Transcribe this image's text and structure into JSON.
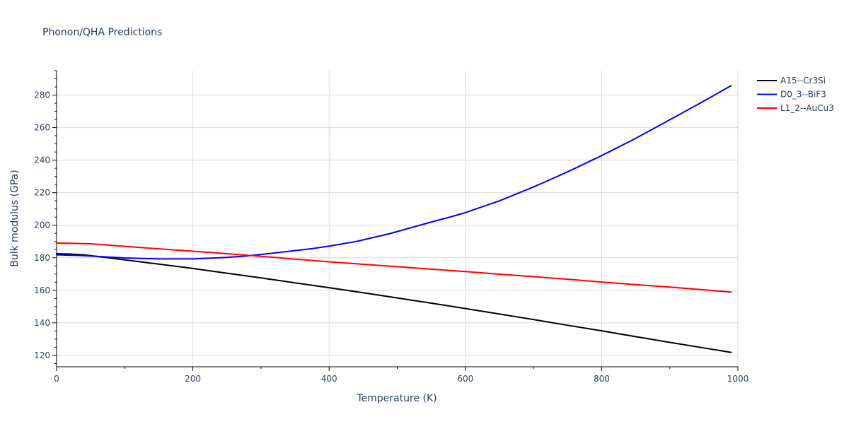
{
  "chart_data": {
    "type": "line",
    "title": "Phonon/QHA Predictions",
    "xlabel": "Temperature (K)",
    "ylabel": "Bulk modulus (GPa)",
    "xlim": [
      0,
      1000
    ],
    "ylim": [
      113,
      295
    ],
    "x_ticks": [
      0,
      200,
      400,
      600,
      800,
      1000
    ],
    "y_ticks": [
      120,
      140,
      160,
      180,
      200,
      220,
      240,
      260,
      280
    ],
    "grid": true,
    "legend_position": "top-right",
    "series": [
      {
        "name": "A15--Cr3Si",
        "color": "#000000",
        "x": [
          0,
          20,
          40,
          60,
          100,
          150,
          200,
          250,
          300,
          350,
          400,
          450,
          500,
          550,
          600,
          650,
          700,
          750,
          800,
          850,
          900,
          950,
          990
        ],
        "y": [
          182.5,
          182.3,
          181.8,
          180.8,
          178.7,
          176.1,
          173.4,
          170.5,
          167.6,
          164.6,
          161.6,
          158.5,
          155.3,
          152.1,
          148.8,
          145.4,
          142.0,
          138.5,
          135.1,
          131.5,
          128.0,
          124.6,
          121.8
        ]
      },
      {
        "name": "D0_3--BiF3",
        "color": "#0000ff",
        "x": [
          0,
          20,
          40,
          60,
          100,
          150,
          200,
          250,
          275,
          300,
          325,
          350,
          375,
          400,
          440,
          490,
          540,
          570,
          580,
          600,
          650,
          700,
          750,
          800,
          850,
          900,
          950,
          990
        ],
        "y": [
          181.8,
          181.6,
          181.3,
          180.8,
          179.9,
          179.3,
          179.3,
          180.2,
          181.0,
          182.0,
          183.2,
          184.4,
          185.6,
          187.2,
          190.0,
          194.9,
          200.8,
          204.2,
          205.3,
          207.8,
          215.0,
          223.5,
          232.8,
          242.8,
          253.4,
          264.8,
          276.3,
          285.8
        ]
      },
      {
        "name": "L1_2--AuCu3",
        "color": "#ff0000",
        "x": [
          0,
          20,
          50,
          100,
          150,
          200,
          250,
          300,
          350,
          400,
          450,
          500,
          550,
          600,
          650,
          700,
          750,
          800,
          850,
          900,
          950,
          990
        ],
        "y": [
          189.0,
          188.9,
          188.6,
          187.0,
          185.5,
          184.0,
          182.5,
          180.9,
          179.2,
          177.5,
          176.0,
          174.5,
          173.0,
          171.5,
          169.9,
          168.4,
          166.8,
          165.1,
          163.5,
          162.0,
          160.3,
          158.9
        ]
      }
    ]
  }
}
